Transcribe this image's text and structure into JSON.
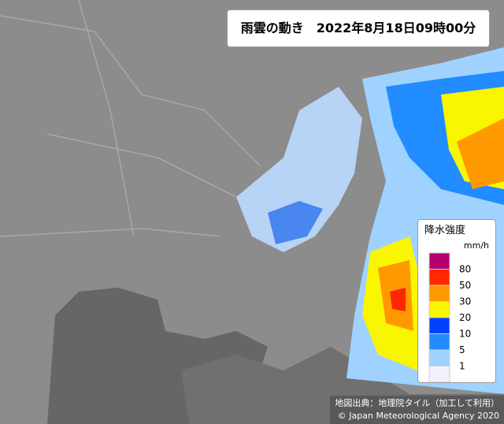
{
  "header": {
    "title": "雨雲の動き　2022年8月18日09時00分"
  },
  "legend": {
    "title": "降水強度",
    "unit": "mm/h",
    "levels": [
      80,
      50,
      30,
      20,
      10,
      5,
      1
    ],
    "colors": [
      "#b4006e",
      "#ff2800",
      "#ff9900",
      "#faf500",
      "#0041ff",
      "#218cff",
      "#a0d2ff",
      "#f2f2ff"
    ]
  },
  "credits": [
    "地図出典：地理院タイル（加工して利用）",
    "© Japan Meteorological Agency 2020"
  ]
}
